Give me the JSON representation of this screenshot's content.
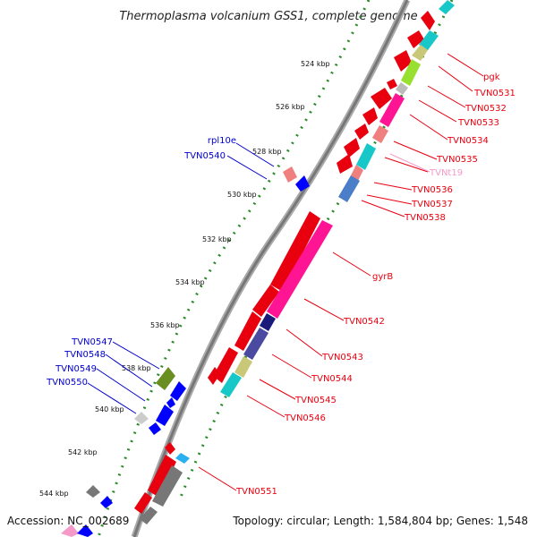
{
  "title": "Thermoplasma volcanium GSS1, complete genome",
  "footer": {
    "accession": "Accession: NC_002689",
    "topology": "Topology: circular; Length: 1,584,804 bp; Genes: 1,548"
  },
  "colors": {
    "label_red": "#e8000f",
    "label_blue": "#0000cc",
    "label_pink": "#f59ac8",
    "backbone": "#888888",
    "dotted": "#2a8a2a"
  },
  "ticks": [
    "524 kbp",
    "526 kbp",
    "528 kbp",
    "530 kbp",
    "532 kbp",
    "534 kbp",
    "536 kbp",
    "538 kbp",
    "540 kbp",
    "542 kbp",
    "544 kbp"
  ],
  "right_labels": [
    "pgk",
    "TVN0531",
    "TVN0532",
    "TVN0533",
    "TVN0534",
    "TVN0535",
    "TVNt19",
    "TVN0536",
    "TVN0537",
    "TVN0538",
    "gyrB",
    "TVN0542",
    "TVN0543",
    "TVN0544",
    "TVN0545",
    "TVN0546",
    "TVN0551"
  ],
  "left_labels": [
    "rpl10e",
    "TVN0540",
    "TVN0547",
    "TVN0548",
    "TVN0549",
    "TVN0550"
  ]
}
